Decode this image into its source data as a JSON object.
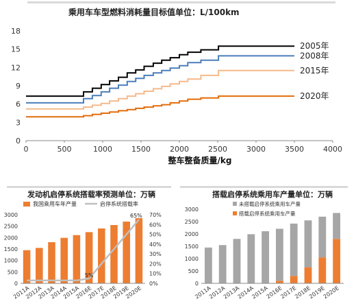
{
  "chart_data": [
    {
      "type": "line",
      "title": "乘用车车型燃料消耗量目标值单位：L/100km",
      "xlabel": "整车整备质量/kg",
      "ylabel": "",
      "xlim": [
        0,
        4000
      ],
      "ylim": [
        0,
        18
      ],
      "x_ticks": [
        "0",
        "500",
        "1000",
        "1500",
        "2000",
        "2500",
        "3000",
        "3500",
        "4000"
      ],
      "y_ticks": [
        "0",
        "3",
        "6",
        "9",
        "12",
        "15",
        "18"
      ],
      "grid": false,
      "legend": "inline-right",
      "series": [
        {
          "name": "2005年",
          "color": "#000000",
          "x": [
            0,
            750,
            750,
            865,
            865,
            980,
            980,
            1090,
            1090,
            1205,
            1205,
            1320,
            1320,
            1430,
            1430,
            1540,
            1540,
            1660,
            1660,
            1770,
            1770,
            1880,
            1880,
            2000,
            2000,
            2110,
            2110,
            2280,
            2280,
            2510,
            2510,
            3500
          ],
          "y": [
            7.3,
            7.3,
            8.0,
            8.0,
            8.6,
            8.6,
            9.2,
            9.2,
            9.8,
            9.8,
            10.4,
            10.4,
            11.1,
            11.1,
            11.6,
            11.6,
            12.2,
            12.2,
            12.7,
            12.7,
            13.2,
            13.2,
            13.6,
            13.6,
            14.1,
            14.1,
            14.5,
            14.5,
            14.9,
            14.9,
            15.5,
            15.5
          ]
        },
        {
          "name": "2008年",
          "color": "#4a7ebb",
          "x": [
            0,
            750,
            750,
            865,
            865,
            980,
            980,
            1090,
            1090,
            1205,
            1205,
            1320,
            1320,
            1430,
            1430,
            1540,
            1540,
            1660,
            1660,
            1770,
            1770,
            1880,
            1880,
            2000,
            2000,
            2110,
            2110,
            2280,
            2280,
            2510,
            2510,
            3500
          ],
          "y": [
            6.2,
            6.2,
            6.9,
            6.9,
            7.4,
            7.4,
            8.0,
            8.0,
            8.6,
            8.6,
            9.1,
            9.1,
            9.7,
            9.7,
            10.2,
            10.2,
            10.7,
            10.7,
            11.1,
            11.1,
            11.5,
            11.5,
            11.9,
            11.9,
            12.3,
            12.3,
            12.8,
            12.8,
            13.2,
            13.2,
            13.9,
            13.9
          ]
        },
        {
          "name": "2015年",
          "color": "#f5b98a",
          "x": [
            0,
            750,
            750,
            865,
            865,
            980,
            980,
            1090,
            1090,
            1205,
            1205,
            1320,
            1320,
            1430,
            1430,
            1540,
            1540,
            1660,
            1660,
            1770,
            1770,
            1880,
            1880,
            2000,
            2000,
            2110,
            2110,
            2280,
            2280,
            2510,
            2510,
            3500
          ],
          "y": [
            5.2,
            5.2,
            5.5,
            5.5,
            5.8,
            5.8,
            6.1,
            6.1,
            6.5,
            6.5,
            6.9,
            6.9,
            7.3,
            7.3,
            7.7,
            7.7,
            8.1,
            8.1,
            8.5,
            8.5,
            8.9,
            8.9,
            9.3,
            9.3,
            9.7,
            9.7,
            10.1,
            10.1,
            10.7,
            10.7,
            11.5,
            11.5
          ]
        },
        {
          "name": "2020年",
          "color": "#e36c09",
          "x": [
            0,
            750,
            750,
            865,
            865,
            980,
            980,
            1090,
            1090,
            1205,
            1205,
            1320,
            1320,
            1430,
            1430,
            1540,
            1540,
            1660,
            1660,
            1770,
            1770,
            1880,
            1880,
            2000,
            2000,
            2110,
            2110,
            2280,
            2280,
            2510,
            2510,
            3500
          ],
          "y": [
            3.9,
            3.9,
            4.1,
            4.1,
            4.3,
            4.3,
            4.5,
            4.5,
            4.7,
            4.7,
            4.9,
            4.9,
            5.1,
            5.1,
            5.3,
            5.3,
            5.5,
            5.5,
            5.7,
            5.7,
            5.9,
            5.9,
            6.2,
            6.2,
            6.5,
            6.5,
            6.8,
            6.8,
            7.0,
            7.0,
            7.3,
            7.3
          ]
        }
      ]
    },
    {
      "type": "bar",
      "title": "发动机启停系统搭载率预测单位：万辆",
      "categories": [
        "2011A",
        "2012A",
        "2013A",
        "2014A",
        "2015A",
        "2016E",
        "2017E",
        "2018E",
        "2019E",
        "2020E"
      ],
      "ylim": [
        0,
        3000
      ],
      "y2lim": [
        0,
        0.7
      ],
      "y_ticks": [
        "0",
        "500",
        "1000",
        "1500",
        "2000",
        "2500",
        "3000"
      ],
      "y2_ticks": [
        "0%",
        "10%",
        "20%",
        "30%",
        "40%",
        "50%",
        "60%",
        "70%"
      ],
      "legend": "top",
      "series": [
        {
          "name": "我国乘用车年产量",
          "kind": "bar",
          "axis": "left",
          "color": "#ed7d31",
          "values": [
            1450,
            1550,
            1800,
            1990,
            2110,
            2240,
            2400,
            2550,
            2700,
            2850
          ]
        },
        {
          "name": "启停系统搭载率",
          "kind": "line",
          "axis": "right",
          "color": "#bfbfbf",
          "values": [
            0.03,
            0.03,
            0.03,
            0.03,
            0.03,
            0.05,
            0.2,
            0.35,
            0.5,
            0.65
          ]
        }
      ],
      "annotations": [
        "5%",
        "65%"
      ]
    },
    {
      "type": "bar",
      "stacked": true,
      "title": "搭载启停系统乘用车产量单位：万辆",
      "categories": [
        "2011A",
        "2012A",
        "2013A",
        "2014A",
        "2015A",
        "2016E",
        "2017E",
        "2018E",
        "2019E",
        "2020E"
      ],
      "ylim": [
        0,
        3000
      ],
      "y_ticks": [
        "0",
        "500",
        "1000",
        "1500",
        "2000",
        "2500",
        "3000"
      ],
      "legend": "top-left",
      "series": [
        {
          "name": "搭载启停系统乘用车产量",
          "color": "#ed7d31",
          "values": [
            0,
            0,
            0,
            0,
            0,
            100,
            300,
            650,
            1050,
            1800
          ]
        },
        {
          "name": "未搭载启停系统乘用车产量",
          "color": "#a6a6a6",
          "values": [
            1450,
            1550,
            1800,
            1990,
            2110,
            2110,
            2120,
            1900,
            1650,
            1050
          ]
        }
      ]
    }
  ]
}
